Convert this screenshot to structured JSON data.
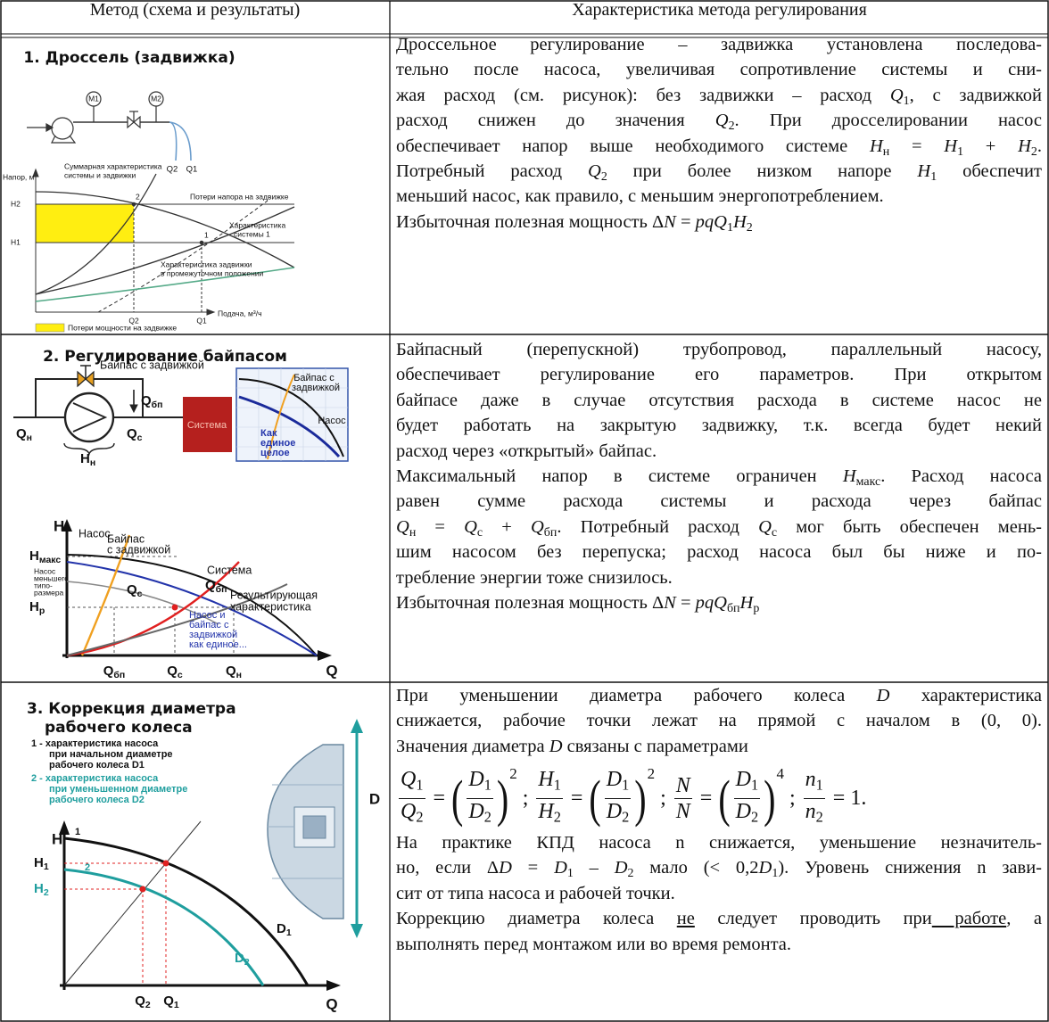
{
  "table": {
    "headers": [
      "Метод (схема и результаты)",
      "Характеристика метода регулирования"
    ],
    "rows": [
      {
        "figure": {
          "title": "1. Дроссель (задвижка)",
          "gauges": [
            "M1",
            "M2"
          ],
          "outlets": [
            "Q2",
            "Q1"
          ],
          "y_label": "Напор, м",
          "curve_labels": [
            [
              "Суммарная характеристика",
              "системы и задвижки"
            ],
            [
              "Потери напора на задвижке"
            ],
            [
              "Характеристика",
              "системы 1"
            ],
            [
              "Характеристика задвижки",
              "в промежуточном положении"
            ]
          ],
          "points": [
            "2",
            "1"
          ],
          "y_ticks": [
            "H2",
            "H1"
          ],
          "x_ticks": [
            "Q2",
            "Q1"
          ],
          "x_label": "Подача, м³/ч",
          "legend": "Потери мощности на задвижке"
        },
        "paragraphs": [
          [
            [
              "Дроссельное регулирование – задвижка установлена последова-"
            ],
            [
              "тельно после насоса, увеличивая сопротивление системы и сни-"
            ],
            [
              "жая расход (см. рисунок): без задвижки – расход ",
              {
                "text": "Q",
                "style": "i"
              },
              {
                "text": "1",
                "style": "sub"
              },
              ", с задвижкой"
            ],
            [
              "расход снижен до значения ",
              {
                "text": "Q",
                "style": "i"
              },
              {
                "text": "2",
                "style": "sub"
              },
              ". При дросселировании насос"
            ],
            [
              "обеспечивает напор выше необходимого системе ",
              {
                "text": "H",
                "style": "i"
              },
              {
                "text": "н",
                "style": "sub"
              },
              " = ",
              {
                "text": "H",
                "style": "i"
              },
              {
                "text": "1",
                "style": "sub"
              },
              " + ",
              {
                "text": "H",
                "style": "i"
              },
              {
                "text": "2",
                "style": "sub"
              },
              "."
            ],
            [
              "Потребный расход ",
              {
                "text": "Q",
                "style": "i"
              },
              {
                "text": "2",
                "style": "sub"
              },
              " при более низком напоре ",
              {
                "text": "H",
                "style": "i"
              },
              {
                "text": "1",
                "style": "sub"
              },
              " обеспечит"
            ],
            [
              "меньший насос, как правило, с меньшим энергопотреблением."
            ]
          ],
          [
            [
              "Избыточная полезная мощность Δ",
              {
                "text": "N",
                "style": "i"
              },
              " = ",
              {
                "text": "pqQ",
                "style": "i"
              },
              {
                "text": "1",
                "style": "sub"
              },
              {
                "text": "H",
                "style": "i"
              },
              {
                "text": "2",
                "style": "sub"
              }
            ]
          ]
        ]
      },
      {
        "figure": {
          "title": "2. Регулирование байпасом",
          "scheme": {
            "valve_label": "Байпас с задвижкой",
            "flows": [
              "Qбп",
              "Qн",
              "Qс"
            ],
            "head": "Hн",
            "system": "Система"
          },
          "inset": {
            "bypass": [
              "Байпас с",
              "задвижкой"
            ],
            "pump": "Насос",
            "combined": [
              "Как",
              "единое",
              "целое"
            ]
          },
          "chart": {
            "y_label": "H",
            "x_label": "Q",
            "pump": "Насос",
            "bypass": [
              "Байпас",
              "с задвижкой"
            ],
            "h_max": "Hмакс",
            "small_pump": [
              "Насос",
              "меньшего",
              "типо-",
              "размера"
            ],
            "q_system": "Qс",
            "system": "Система",
            "q_bypass": "Qбп",
            "h_p": "Hр",
            "resulting": [
              "Результирующая",
              "характеристика"
            ],
            "combined": [
              "Насос и",
              "байпас с",
              "задвижкой",
              "как единое..."
            ],
            "x_ticks": [
              "Qбп",
              "Qс",
              "Qн"
            ]
          }
        },
        "paragraphs": [
          [
            [
              "Байпасный (перепускной) трубопровод, параллельный насосу,"
            ],
            [
              "обеспечивает регулирование его параметров. При открытом"
            ],
            [
              "байпасе даже в случае отсутствия расхода в системе насос не"
            ],
            [
              "будет работать на закрытую задвижку, т.к. всегда будет некий"
            ],
            [
              "расход через «открытый» байпас."
            ]
          ],
          [
            [
              "Максимальный напор в системе ограничен ",
              {
                "text": "H",
                "style": "i"
              },
              {
                "text": "макс",
                "style": "sub"
              },
              ". Расход насоса"
            ],
            [
              "равен сумме расхода системы и расхода через байпас"
            ],
            [
              {
                "text": "Q",
                "style": "i"
              },
              {
                "text": "н",
                "style": "sub"
              },
              " = ",
              {
                "text": "Q",
                "style": "i"
              },
              {
                "text": "с",
                "style": "sub"
              },
              " + ",
              {
                "text": "Q",
                "style": "i"
              },
              {
                "text": "бп",
                "style": "sub"
              },
              ". Потребный расход ",
              {
                "text": "Q",
                "style": "i"
              },
              {
                "text": "с",
                "style": "sub"
              },
              " мог быть обеспечен мень-"
            ],
            [
              "шим насосом без перепуска; расход насоса был бы ниже и по-"
            ],
            [
              "требление энергии тоже снизилось."
            ]
          ],
          [
            [
              "Избыточная полезная мощность Δ",
              {
                "text": "N",
                "style": "i"
              },
              " = ",
              {
                "text": "pqQ",
                "style": "i"
              },
              {
                "text": "бп",
                "style": "sub"
              },
              {
                "text": "H",
                "style": "i"
              },
              {
                "text": "р",
                "style": "sub"
              }
            ]
          ]
        ]
      },
      {
        "figure": {
          "title": [
            "3. Коррекция диаметра",
            "рабочего колеса"
          ],
          "legend": [
            [
              "1 - характеристика насоса",
              "при начальном диаметре",
              "рабочего колеса D1"
            ],
            [
              "2 - характеристика насоса",
              "при уменьшенном диаметре",
              "рабочего колеса D2"
            ]
          ],
          "diameter": "D",
          "chart": {
            "y_label": "H",
            "x_label": "Q",
            "curve_numbers": [
              "1",
              "2"
            ],
            "y_ticks": [
              "H1",
              "H2"
            ],
            "curves": [
              "D1",
              "D2"
            ],
            "x_ticks": [
              "Q2",
              "Q1"
            ]
          }
        },
        "paragraphs": [
          [
            [
              "При уменьшении диаметра рабочего колеса ",
              {
                "text": "D",
                "style": "i"
              },
              " характеристика"
            ],
            [
              "снижается, рабочие точки лежат на прямой с началом в (0, 0)."
            ],
            [
              "Значения диаметра ",
              {
                "text": "D",
                "style": "i"
              },
              " связаны с параметрами"
            ]
          ],
          [
            [
              "На практике КПД насоса n снижается, уменьшение незначитель-"
            ],
            [
              "но, если Δ",
              {
                "text": "D",
                "style": "i"
              },
              " = ",
              {
                "text": "D",
                "style": "i"
              },
              {
                "text": "1",
                "style": "sub"
              },
              " – ",
              {
                "text": "D",
                "style": "i"
              },
              {
                "text": "2",
                "style": "sub"
              },
              " мало (< 0,2",
              {
                "text": "D",
                "style": "i"
              },
              {
                "text": "1",
                "style": "sub"
              },
              "). Уровень снижения n зави-"
            ],
            [
              "сит от типа насоса и рабочей точки."
            ]
          ],
          [
            [
              "Коррекцию диаметра колеса ",
              {
                "text": "не",
                "style": "u"
              },
              " следует проводить при",
              {
                "text": " работе",
                "style": "u"
              },
              ", а"
            ],
            [
              "выполнять перед монтажом или во время ремонта."
            ]
          ]
        ],
        "formula": {
          "equals": "=",
          "separator": ";",
          "brackets": [
            "(",
            ")"
          ],
          "terms": [
            {
              "lhs": [
                "Q1",
                "Q2"
              ],
              "rhs": [
                "D1",
                "D2"
              ],
              "power": "2"
            },
            {
              "lhs": [
                "H1",
                "H2"
              ],
              "rhs": [
                "D1",
                "D2"
              ],
              "power": "2"
            },
            {
              "lhs": [
                "N",
                "N"
              ],
              "rhs": [
                "D1",
                "D2"
              ],
              "power": "4"
            },
            {
              "lhs": [
                "n1",
                "n2"
              ],
              "value": "1."
            }
          ]
        }
      }
    ]
  }
}
